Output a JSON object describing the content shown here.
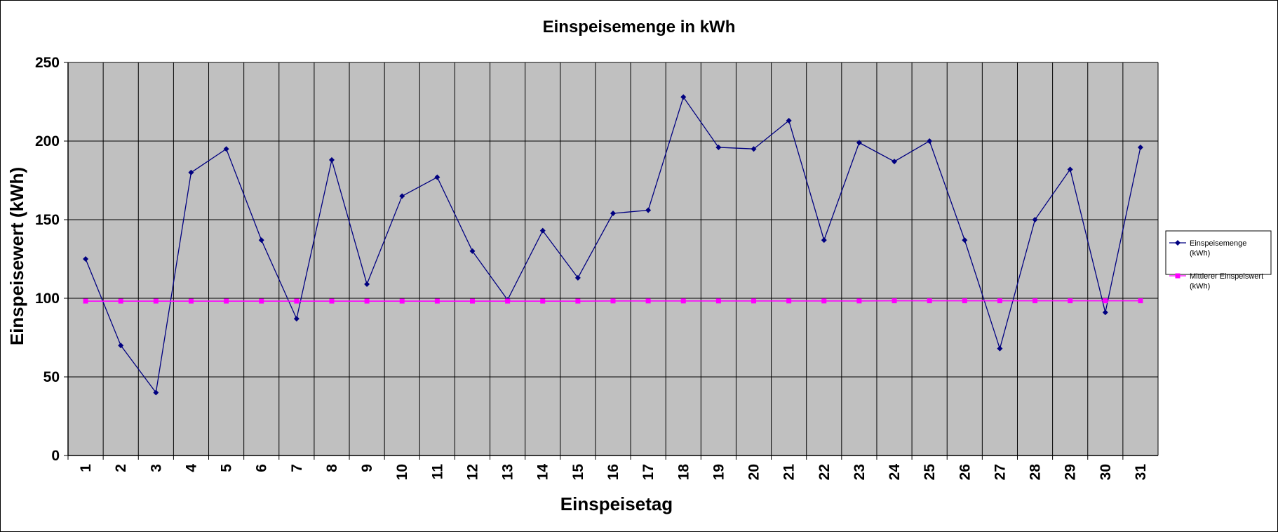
{
  "chart_data": {
    "type": "line",
    "title": "Einspeisemenge in kWh",
    "xlabel": "Einspeisetag",
    "ylabel": "Einspeisewert  (kWh)",
    "ylim": [
      0,
      250
    ],
    "yticks": [
      "0",
      "50",
      "100",
      "150",
      "200",
      "250"
    ],
    "grid": true,
    "legend_position": "right",
    "categories": [
      "1",
      "2",
      "3",
      "4",
      "5",
      "6",
      "7",
      "8",
      "9",
      "10",
      "11",
      "12",
      "13",
      "14",
      "15",
      "16",
      "17",
      "18",
      "19",
      "20",
      "21",
      "22",
      "23",
      "24",
      "25",
      "26",
      "27",
      "28",
      "29",
      "30",
      "31"
    ],
    "series": [
      {
        "name": "Einspeisemenge (kWh)",
        "legend_lines": [
          "Einspeisemenge",
          "(kWh)"
        ],
        "color": "#000080",
        "marker": "diamond",
        "values": [
          125,
          70,
          40,
          180,
          195,
          137,
          87,
          188,
          109,
          165,
          177,
          130,
          99,
          143,
          113,
          154,
          156,
          228,
          196,
          195,
          213,
          137,
          199,
          187,
          200,
          137,
          68,
          150,
          182,
          91,
          196
        ]
      },
      {
        "name": "Mittlerer Einspeiswert (kWh)",
        "legend_lines": [
          "Mittlerer Einspeiswert",
          "(kWh)"
        ],
        "color": "#ff00ff",
        "marker": "square",
        "values": [
          98.2,
          98.2,
          98.2,
          98.2,
          98.2,
          98.2,
          98.2,
          98.2,
          98.2,
          98.2,
          98.2,
          98.2,
          98.2,
          98.2,
          98.2,
          98.3,
          98.3,
          98.3,
          98.3,
          98.3,
          98.3,
          98.3,
          98.3,
          98.4,
          98.4,
          98.4,
          98.4,
          98.4,
          98.4,
          98.4,
          98.4
        ]
      }
    ],
    "colors": {
      "plot_background": "#c0c0c0",
      "gridline": "#000000"
    }
  }
}
